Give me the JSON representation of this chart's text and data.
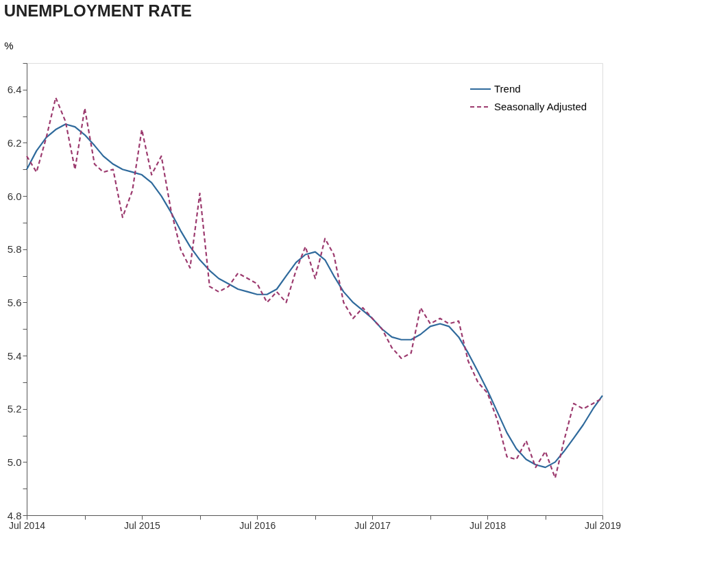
{
  "chart_data": {
    "type": "line",
    "title": "UNEMPLOYMENT RATE",
    "ylabel": "%",
    "x": [
      "2014-07",
      "2014-08",
      "2014-09",
      "2014-10",
      "2014-11",
      "2014-12",
      "2015-01",
      "2015-02",
      "2015-03",
      "2015-04",
      "2015-05",
      "2015-06",
      "2015-07",
      "2015-08",
      "2015-09",
      "2015-10",
      "2015-11",
      "2015-12",
      "2016-01",
      "2016-02",
      "2016-03",
      "2016-04",
      "2016-05",
      "2016-06",
      "2016-07",
      "2016-08",
      "2016-09",
      "2016-10",
      "2016-11",
      "2016-12",
      "2017-01",
      "2017-02",
      "2017-03",
      "2017-04",
      "2017-05",
      "2017-06",
      "2017-07",
      "2017-08",
      "2017-09",
      "2017-10",
      "2017-11",
      "2017-12",
      "2018-01",
      "2018-02",
      "2018-03",
      "2018-04",
      "2018-05",
      "2018-06",
      "2018-07",
      "2018-08",
      "2018-09",
      "2018-10",
      "2018-11",
      "2018-12",
      "2019-01",
      "2019-02",
      "2019-03",
      "2019-04",
      "2019-05",
      "2019-06",
      "2019-07"
    ],
    "legend": "top right",
    "grid": false,
    "marker": "none",
    "xlim": [
      "2014-07",
      "2019-07"
    ],
    "xticks": [
      {
        "value": "2014-07",
        "label": "Jul 2014"
      },
      {
        "value": "2015-01",
        "label": null
      },
      {
        "value": "2015-07",
        "label": "Jul 2015"
      },
      {
        "value": "2016-01",
        "label": null
      },
      {
        "value": "2016-07",
        "label": "Jul 2016"
      },
      {
        "value": "2017-01",
        "label": null
      },
      {
        "value": "2017-07",
        "label": "Jul 2017"
      },
      {
        "value": "2018-01",
        "label": null
      },
      {
        "value": "2018-07",
        "label": "Jul 2018"
      },
      {
        "value": "2019-01",
        "label": null
      },
      {
        "value": "2019-07",
        "label": "Jul 2019"
      }
    ],
    "ylim": [
      4.8,
      6.5
    ],
    "yticks": [
      4.8,
      {
        "value": 4.9,
        "label": null
      },
      {
        "value": 5.0,
        "label": "5.0"
      },
      {
        "value": 5.1,
        "label": null
      },
      5.2,
      {
        "value": 5.3,
        "label": null
      },
      5.4,
      {
        "value": 5.5,
        "label": null
      },
      5.6,
      {
        "value": 5.7,
        "label": null
      },
      5.8,
      {
        "value": 5.9,
        "label": null
      },
      {
        "value": 6.0,
        "label": "6.0"
      },
      {
        "value": 6.1,
        "label": null
      },
      6.2,
      {
        "value": 6.3,
        "label": null
      },
      6.4,
      {
        "value": 6.5,
        "label": null
      }
    ],
    "series": [
      {
        "name": "Trend",
        "color": "#2f6a9c",
        "line_style": "solid",
        "values": [
          6.1,
          6.17,
          6.22,
          6.25,
          6.27,
          6.26,
          6.23,
          6.19,
          6.15,
          6.12,
          6.1,
          6.09,
          6.08,
          6.05,
          6.0,
          5.94,
          5.87,
          5.81,
          5.76,
          5.72,
          5.69,
          5.67,
          5.65,
          5.64,
          5.63,
          5.63,
          5.65,
          5.7,
          5.75,
          5.78,
          5.79,
          5.76,
          5.7,
          5.64,
          5.6,
          5.57,
          5.54,
          5.5,
          5.47,
          5.46,
          5.46,
          5.48,
          5.51,
          5.52,
          5.51,
          5.47,
          5.41,
          5.34,
          5.27,
          5.19,
          5.11,
          5.05,
          5.01,
          4.99,
          4.98,
          5.0,
          5.04,
          5.09,
          5.14,
          5.2,
          5.25
        ]
      },
      {
        "name": "Seasonally Adjusted",
        "color": "#9c3a6e",
        "line_style": "dashed",
        "values": [
          6.15,
          6.09,
          6.22,
          6.37,
          6.28,
          6.1,
          6.33,
          6.12,
          6.09,
          6.1,
          5.92,
          6.02,
          6.25,
          6.08,
          6.15,
          5.95,
          5.8,
          5.73,
          6.01,
          5.66,
          5.64,
          5.66,
          5.71,
          5.69,
          5.67,
          5.6,
          5.64,
          5.6,
          5.72,
          5.81,
          5.69,
          5.84,
          5.78,
          5.6,
          5.54,
          5.58,
          5.54,
          5.5,
          5.43,
          5.39,
          5.41,
          5.58,
          5.52,
          5.54,
          5.52,
          5.53,
          5.38,
          5.3,
          5.26,
          5.16,
          5.02,
          5.01,
          5.08,
          4.98,
          5.04,
          4.94,
          5.08,
          5.22,
          5.2,
          5.22,
          5.24
        ]
      }
    ]
  }
}
